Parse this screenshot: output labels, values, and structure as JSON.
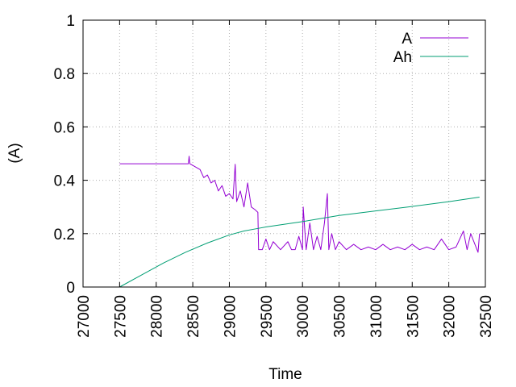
{
  "chart_data": {
    "type": "line",
    "title": "",
    "xlabel": "Time",
    "ylabel": "(A)",
    "xlim": [
      27000,
      32500
    ],
    "ylim": [
      0,
      1
    ],
    "x_ticks": [
      "27000",
      "27500",
      "28000",
      "28500",
      "29000",
      "29500",
      "30000",
      "30500",
      "31000",
      "31500",
      "32000",
      "32500"
    ],
    "y_ticks": [
      "0",
      "0.2",
      "0.4",
      "0.6",
      "0.8",
      "1"
    ],
    "grid": true,
    "legend_position": "top-right",
    "series": [
      {
        "name": "A",
        "color": "#9400d3",
        "x": [
          27500,
          28000,
          28440,
          28450,
          28460,
          28600,
          28650,
          28700,
          28750,
          28800,
          28850,
          28900,
          28950,
          29000,
          29050,
          29080,
          29100,
          29150,
          29200,
          29250,
          29300,
          29350,
          29390,
          29400,
          29450,
          29500,
          29550,
          29600,
          29700,
          29800,
          29850,
          29900,
          29950,
          30000,
          30010,
          30050,
          30100,
          30150,
          30200,
          30250,
          30300,
          30340,
          30360,
          30400,
          30450,
          30500,
          30600,
          30700,
          30800,
          30900,
          31000,
          31100,
          31200,
          31300,
          31400,
          31500,
          31600,
          31700,
          31800,
          31900,
          32000,
          32100,
          32200,
          32250,
          32300,
          32400,
          32420
        ],
        "y": [
          0.462,
          0.462,
          0.462,
          0.49,
          0.462,
          0.44,
          0.41,
          0.42,
          0.39,
          0.4,
          0.36,
          0.38,
          0.34,
          0.35,
          0.33,
          0.46,
          0.32,
          0.36,
          0.3,
          0.39,
          0.3,
          0.29,
          0.28,
          0.14,
          0.14,
          0.18,
          0.14,
          0.17,
          0.14,
          0.17,
          0.14,
          0.14,
          0.19,
          0.14,
          0.3,
          0.14,
          0.24,
          0.14,
          0.19,
          0.14,
          0.24,
          0.35,
          0.14,
          0.2,
          0.14,
          0.17,
          0.14,
          0.16,
          0.14,
          0.15,
          0.14,
          0.16,
          0.14,
          0.15,
          0.14,
          0.16,
          0.14,
          0.15,
          0.14,
          0.18,
          0.14,
          0.15,
          0.21,
          0.14,
          0.2,
          0.13,
          0.2
        ]
      },
      {
        "name": "Ah",
        "color": "#009e73",
        "x": [
          27500,
          27800,
          28100,
          28400,
          28700,
          29000,
          29200,
          29400,
          29500,
          30000,
          30500,
          31000,
          31500,
          32000,
          32420
        ],
        "y": [
          0,
          0.045,
          0.09,
          0.13,
          0.165,
          0.195,
          0.21,
          0.22,
          0.225,
          0.245,
          0.268,
          0.285,
          0.302,
          0.32,
          0.337
        ]
      }
    ]
  }
}
